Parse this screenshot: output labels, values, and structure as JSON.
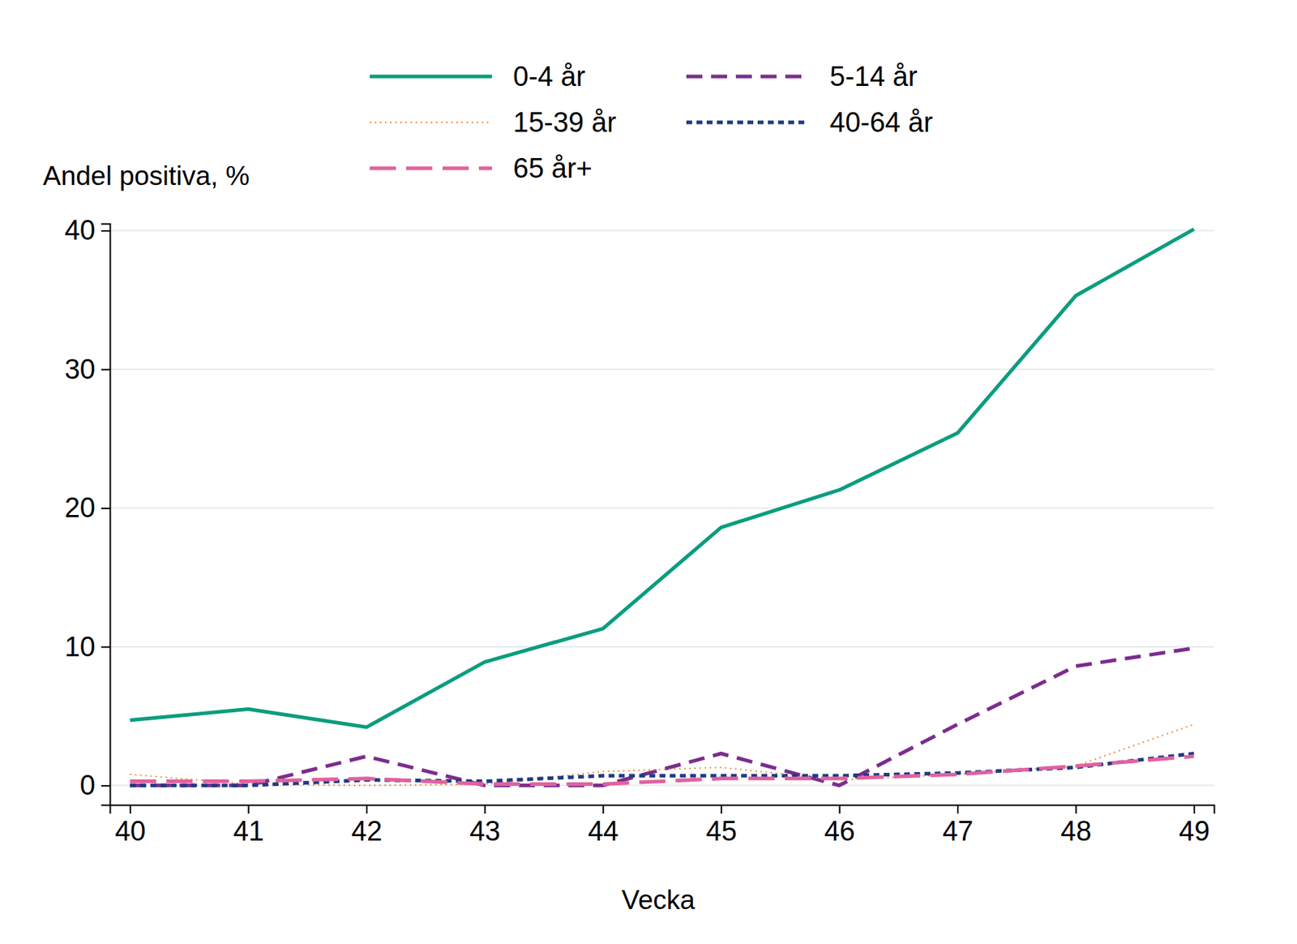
{
  "chart_data": {
    "type": "line",
    "x_label": "Vecka",
    "y_label": "Andel positiva, %",
    "x": [
      40,
      41,
      42,
      43,
      44,
      45,
      46,
      47,
      48,
      49
    ],
    "xlim": [
      39.83,
      49.17
    ],
    "xticks": [
      40,
      41,
      42,
      43,
      44,
      45,
      46,
      47,
      48,
      49
    ],
    "ylim": [
      -1.4,
      40.5
    ],
    "yticks": [
      0,
      10,
      20,
      30,
      40
    ],
    "grid": true,
    "legend": "top",
    "series": [
      {
        "name": "0-4 år",
        "color": "#0a9d7e",
        "line_style": "solid",
        "values": [
          4.7,
          5.5,
          4.2,
          8.9,
          11.3,
          18.6,
          21.3,
          25.4,
          35.3,
          40.1
        ]
      },
      {
        "name": "5-14 år",
        "color": "#7b2d8e",
        "line_style": "dashed",
        "values": [
          0,
          0,
          2.1,
          0,
          0,
          2.3,
          0,
          4.4,
          8.6,
          9.9
        ]
      },
      {
        "name": "15-39 år",
        "color": "#f28b3c",
        "line_style": "dotted",
        "values": [
          0.8,
          0.1,
          0,
          0.1,
          1.0,
          1.3,
          0.4,
          0.8,
          1.4,
          4.4
        ]
      },
      {
        "name": "40-64 år",
        "color": "#1f3b82",
        "line_style": "short-dotted",
        "values": [
          0,
          0,
          0.4,
          0.3,
          0.7,
          0.7,
          0.7,
          0.9,
          1.3,
          2.3
        ]
      },
      {
        "name": "65 år+",
        "color": "#e2619f",
        "line_style": "long-dashed",
        "values": [
          0.3,
          0.3,
          0.5,
          0.1,
          0.1,
          0.5,
          0.5,
          0.8,
          1.4,
          2.1
        ]
      }
    ]
  }
}
